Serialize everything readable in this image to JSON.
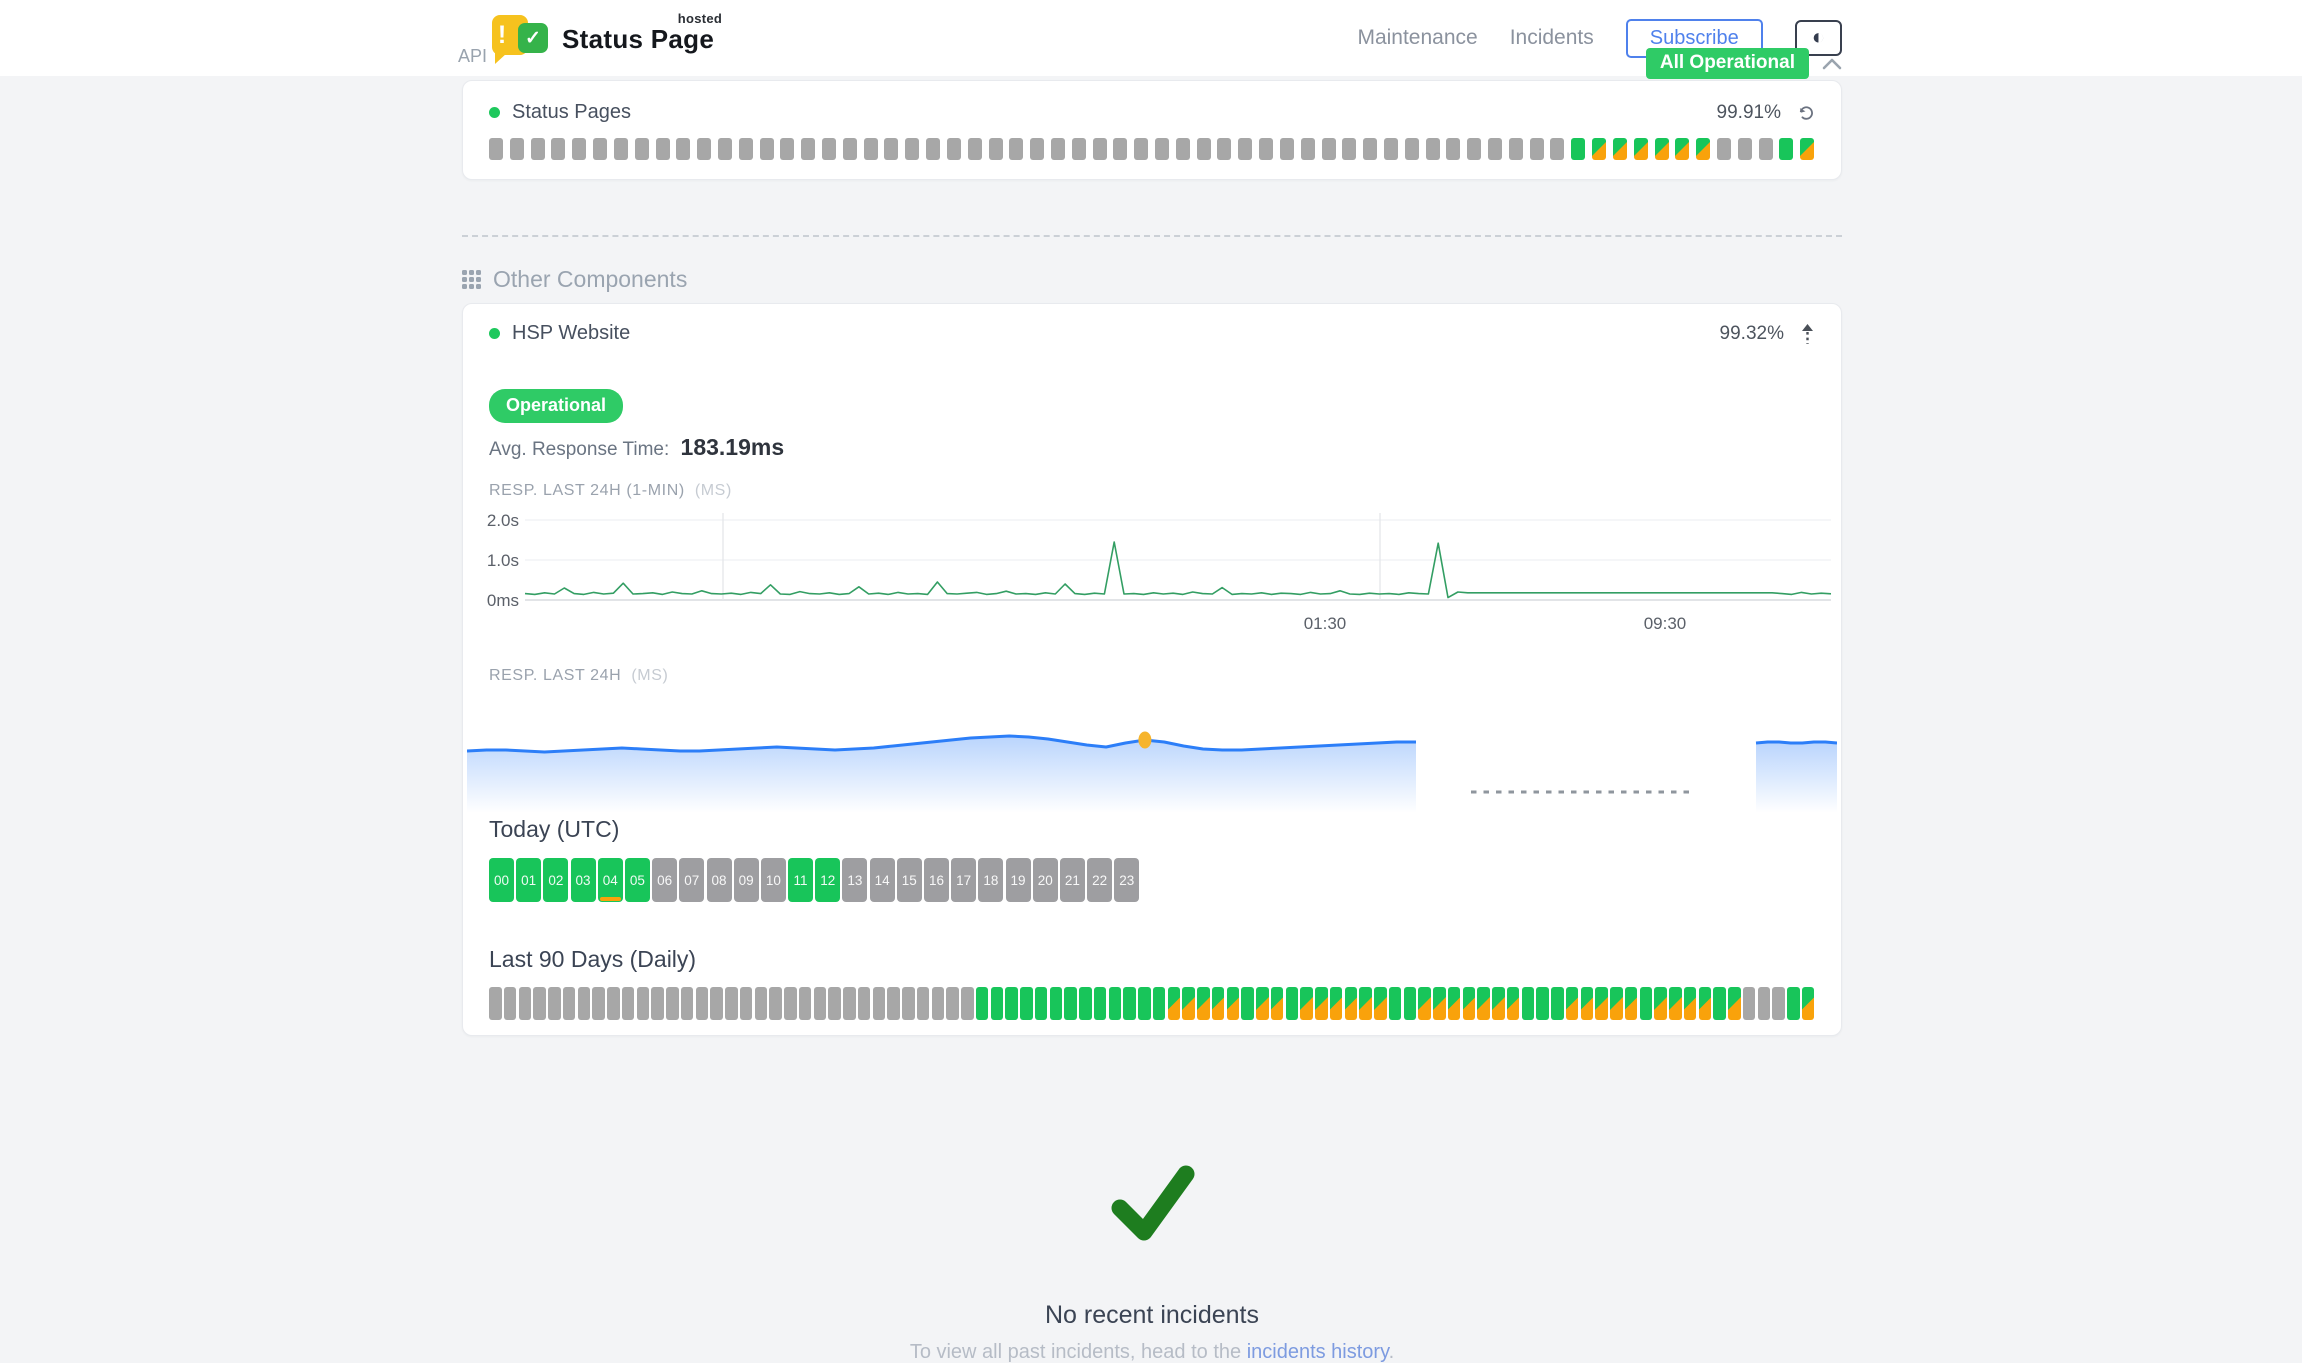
{
  "header": {
    "brand": {
      "title": "Status Page",
      "superscript": "hosted",
      "badge_exclamation": "!",
      "badge_check": "✓"
    },
    "nav": [
      {
        "label": "Maintenance"
      },
      {
        "label": "Incidents"
      }
    ],
    "subscribe_label": "Subscribe",
    "theme_icon": "◐",
    "overall_status_badge": "All Operational"
  },
  "legend": {
    "n": "no-data",
    "u": "operational",
    "m": "partial-incident"
  },
  "api_section": {
    "title": "API",
    "component": {
      "name": "Status Pages",
      "uptime": "99.91%",
      "bars": "nnnnnnnnnnnnnnnnnnnnnnnnnnnnnnnnnnnnnnnnnnnnnnnnnnnnummmmmmnnnum"
    }
  },
  "other_section": {
    "title": "Other Components",
    "component": {
      "name": "HSP Website",
      "uptime": "99.32%",
      "status": "Operational",
      "avg_label": "Avg. Response Time:",
      "avg_value": "183.19ms",
      "chart_1min": {
        "label": "RESP. LAST 24H (1-MIN)",
        "unit": "(MS)",
        "type": "line",
        "ylim_ms": [
          0,
          2000
        ],
        "y_ticks": [
          "2.0s",
          "1.0s",
          "0ms"
        ],
        "x_ticks": [
          {
            "label": "01:30"
          },
          {
            "label": "09:30"
          }
        ],
        "values_ms": [
          160,
          140,
          180,
          150,
          300,
          160,
          140,
          190,
          150,
          170,
          420,
          150,
          160,
          180,
          140,
          200,
          160,
          150,
          230,
          160,
          150,
          170,
          140,
          190,
          160,
          380,
          150,
          140,
          210,
          160,
          150,
          180,
          140,
          160,
          330,
          150,
          170,
          140,
          190,
          150,
          160,
          140,
          450,
          160,
          150,
          170,
          190,
          140,
          160,
          220,
          150,
          160,
          140,
          180,
          150,
          400,
          160,
          140,
          170,
          150,
          1450,
          150,
          160,
          140,
          180,
          150,
          170,
          140,
          200,
          160,
          150,
          310,
          140,
          160,
          150,
          180,
          140,
          170,
          160,
          140,
          190,
          150,
          160,
          230,
          150,
          140,
          170,
          150,
          160,
          140,
          180,
          160,
          150,
          1420,
          60,
          200,
          180,
          180,
          180,
          180,
          180,
          180,
          180,
          180,
          180,
          180,
          180,
          180,
          180,
          180,
          180,
          180,
          180,
          180,
          180,
          180,
          180,
          180,
          180,
          180,
          180,
          180,
          180,
          180,
          180,
          180,
          180,
          180,
          160,
          140,
          190,
          150,
          170,
          155
        ]
      },
      "chart_24h": {
        "label": "RESP. LAST 24H",
        "unit": "(MS)",
        "type": "area",
        "has_data_gap": true,
        "marker_index": 35,
        "segment1_y": [
          58,
          57,
          57,
          58,
          59,
          58,
          57,
          56,
          55,
          56,
          57,
          58,
          58,
          57,
          56,
          55,
          54,
          55,
          56,
          57,
          56,
          55,
          53,
          51,
          49,
          47,
          45,
          44,
          43,
          44,
          46,
          49,
          52,
          54,
          50,
          47,
          49,
          53,
          56,
          57,
          57,
          56,
          55,
          54,
          53,
          52,
          51,
          50,
          49,
          49
        ],
        "segment2_y": [
          50,
          49,
          49,
          50,
          50,
          49,
          49,
          50
        ]
      },
      "today": {
        "title": "Today (UTC)",
        "hours": [
          {
            "label": "00",
            "status": "u"
          },
          {
            "label": "01",
            "status": "u"
          },
          {
            "label": "02",
            "status": "u"
          },
          {
            "label": "03",
            "status": "u"
          },
          {
            "label": "04",
            "status": "u",
            "incident_marker": true
          },
          {
            "label": "05",
            "status": "u"
          },
          {
            "label": "06",
            "status": "n"
          },
          {
            "label": "07",
            "status": "n"
          },
          {
            "label": "08",
            "status": "n"
          },
          {
            "label": "09",
            "status": "n"
          },
          {
            "label": "10",
            "status": "n"
          },
          {
            "label": "11",
            "status": "u"
          },
          {
            "label": "12",
            "status": "u"
          },
          {
            "label": "13",
            "status": "n"
          },
          {
            "label": "14",
            "status": "n"
          },
          {
            "label": "15",
            "status": "n"
          },
          {
            "label": "16",
            "status": "n"
          },
          {
            "label": "17",
            "status": "n"
          },
          {
            "label": "18",
            "status": "n"
          },
          {
            "label": "19",
            "status": "n"
          },
          {
            "label": "20",
            "status": "n"
          },
          {
            "label": "21",
            "status": "n"
          },
          {
            "label": "22",
            "status": "n"
          },
          {
            "label": "23",
            "status": "n"
          }
        ]
      },
      "last90": {
        "title": "Last 90 Days (Daily)",
        "statuses": "nnnnnnnnnnnnnnnnnnnnnnnnnnnnnnnnnuuuuuuuuuuuuummmmmummummmmmmuummmmmmmuuummmmmummmmumnnnum"
      }
    }
  },
  "incidents": {
    "title": "No recent incidents",
    "text_before_link": "To view all past incidents, head to the ",
    "link": "incidents history",
    "text_after_link": "."
  },
  "colors": {
    "green": "#18C55A",
    "badge_green": "#2FCB66",
    "orange": "#F9A20B",
    "nodata_gray": "#A7A7A7",
    "chart_line_green": "#339E63",
    "blue": "#2C7EF8",
    "marker_yellow": "#F6B42C",
    "check_green": "#1E7D1F",
    "link_blue": "#7D9BE0"
  }
}
